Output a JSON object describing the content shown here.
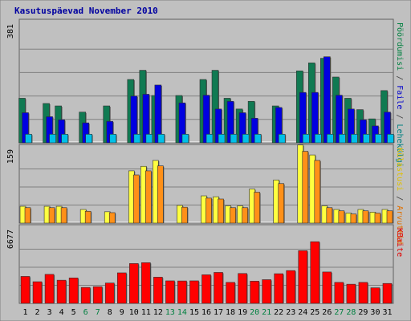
{
  "chart_data": {
    "type": "bar",
    "title": "Kasutuspäevad November 2010",
    "categories": [
      "1",
      "2",
      "3",
      "4",
      "5",
      "6",
      "7",
      "8",
      "9",
      "10",
      "11",
      "12",
      "13",
      "14",
      "15",
      "16",
      "17",
      "18",
      "19",
      "20",
      "21",
      "22",
      "23",
      "24",
      "25",
      "26",
      "27",
      "28",
      "29",
      "30",
      "31"
    ],
    "weekend_days": [
      "6",
      "7",
      "13",
      "14",
      "20",
      "21",
      "27",
      "28"
    ],
    "panels": [
      {
        "name": "top",
        "ymax_label": "381",
        "ymax": 381,
        "right_labels": [
          {
            "text": "Pöördumisi",
            "color": "#008040"
          },
          {
            "text": " / ",
            "color": "#404040"
          },
          {
            "text": "Faile",
            "color": "#0000cc"
          },
          {
            "text": " / ",
            "color": "#404040"
          },
          {
            "text": "Lehekülgi",
            "color": "#008080"
          }
        ],
        "series": [
          {
            "name": "Pöördumisi",
            "color": "#107a52",
            "values": [
              145,
              0,
              128,
              120,
              0,
              100,
              0,
              120,
              0,
              206,
              236,
              154,
              0,
              154,
              0,
              206,
              236,
              145,
              110,
              135,
              0,
              120,
              0,
              234,
              260,
              275,
              214,
              145,
              108,
              78,
              170
            ]
          },
          {
            "name": "Faile",
            "color": "#0000e0",
            "values": [
              98,
              0,
              85,
              75,
              0,
              65,
              0,
              70,
              0,
              152,
              158,
              188,
              0,
              130,
              0,
              155,
              110,
              135,
              98,
              80,
              0,
              115,
              0,
              164,
              164,
              280,
              155,
              110,
              75,
              55,
              100
            ]
          },
          {
            "name": "Lehekülgi",
            "color": "#00c0e8",
            "values": [
              28,
              0,
              28,
              28,
              0,
              28,
              0,
              28,
              0,
              28,
              28,
              28,
              0,
              28,
              0,
              28,
              28,
              28,
              28,
              28,
              0,
              28,
              0,
              28,
              28,
              28,
              28,
              28,
              28,
              28,
              28
            ]
          }
        ]
      },
      {
        "name": "middle",
        "ymax_label": "159",
        "ymax": 159,
        "right_labels": [
          {
            "text": "Külastusi",
            "color": "#e0c000"
          },
          {
            "text": " / ",
            "color": "#404040"
          },
          {
            "text": "Arvuteid",
            "color": "#e07000"
          }
        ],
        "series": [
          {
            "name": "Külastusi",
            "color": "#ffff40",
            "values": [
              37,
              0,
              37,
              37,
              0,
              30,
              0,
              25,
              0,
              115,
              125,
              138,
              0,
              39,
              0,
              60,
              58,
              38,
              38,
              75,
              0,
              95,
              0,
              172,
              150,
              38,
              30,
              22,
              30,
              24,
              30
            ]
          },
          {
            "name": "Arvuteid",
            "color": "#ff9018",
            "values": [
              34,
              0,
              34,
              34,
              0,
              26,
              0,
              23,
              0,
              106,
              115,
              126,
              0,
              35,
              0,
              55,
              53,
              34,
              34,
              68,
              0,
              87,
              0,
              158,
              138,
              34,
              27,
              20,
              27,
              22,
              27
            ]
          }
        ]
      },
      {
        "name": "bottom",
        "ymax_label": "6677",
        "ymax": 6677,
        "right_labels": [
          {
            "text": "KBaite",
            "color": "#e00000"
          }
        ],
        "series": [
          {
            "name": "KBaite",
            "color": "#ff0000",
            "values": [
              2490,
              2000,
              2680,
              2140,
              2350,
              1470,
              1540,
              1880,
              2820,
              3680,
              3760,
              2420,
              2080,
              2070,
              2080,
              2640,
              2860,
              1940,
              2760,
              2050,
              2190,
              2740,
              3030,
              4870,
              5700,
              2900,
              1940,
              1770,
              1940,
              1440,
              1840
            ]
          }
        ]
      }
    ]
  }
}
